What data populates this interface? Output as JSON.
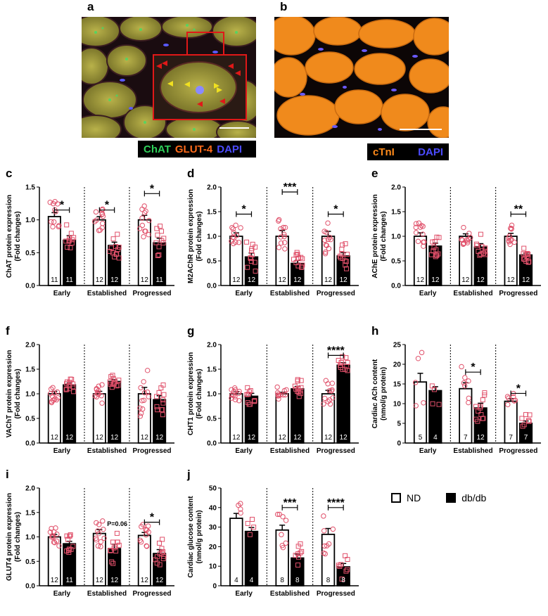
{
  "panels": {
    "a": {
      "label": "a",
      "legend": [
        {
          "text": "ChAT",
          "color": "#2fd05a"
        },
        {
          "text": "GLUT-4",
          "color": "#ff6a1a"
        },
        {
          "text": "DAPI",
          "color": "#4b4bff"
        }
      ]
    },
    "b": {
      "label": "b",
      "legend": [
        {
          "text": "cTnI",
          "color": "#ff8a1a"
        },
        {
          "text": "DAPI",
          "color": "#4b4bff"
        }
      ]
    }
  },
  "key": {
    "nd": "ND",
    "dbdb": "db/db"
  },
  "chart_data": [
    {
      "id": "c",
      "type": "bar",
      "ylabel": "ChAT protein expression\n(Fold changes)",
      "ylim": [
        0,
        1.5
      ],
      "yticks": [
        "0.0",
        "0.5",
        "1.0",
        "1.5"
      ],
      "yticks_v": [
        0,
        0.5,
        1.0,
        1.5
      ],
      "categories": [
        "Early",
        "Established",
        "Progressed"
      ],
      "series": [
        {
          "name": "ND",
          "values": [
            1.05,
            1.0,
            1.0
          ],
          "err": [
            0.06,
            0.05,
            0.07
          ],
          "n": [
            "11",
            "12",
            "12"
          ]
        },
        {
          "name": "db/db",
          "values": [
            0.69,
            0.61,
            0.65
          ],
          "err": [
            0.07,
            0.05,
            0.07
          ],
          "n": [
            "11",
            "12",
            "11"
          ]
        }
      ],
      "sig": [
        {
          "group": 0,
          "text": "*",
          "y": 1.15
        },
        {
          "group": 1,
          "text": "*",
          "y": 1.15
        },
        {
          "group": 2,
          "text": "*",
          "y": 1.4
        }
      ]
    },
    {
      "id": "d",
      "type": "bar",
      "ylabel": "M2AChR protein expression\n(Fold changes)",
      "ylim": [
        0,
        2.0
      ],
      "yticks": [
        "0.0",
        "0.5",
        "1.0",
        "1.5",
        "2.0"
      ],
      "yticks_v": [
        0,
        0.5,
        1.0,
        1.5,
        2.0
      ],
      "categories": [
        "Early",
        "Established",
        "Progressed"
      ],
      "series": [
        {
          "name": "ND",
          "values": [
            1.0,
            1.0,
            1.0
          ],
          "err": [
            0.07,
            0.12,
            0.1
          ],
          "n": [
            "12",
            "12",
            "12"
          ]
        },
        {
          "name": "db/db",
          "values": [
            0.58,
            0.45,
            0.6
          ],
          "err": [
            0.08,
            0.06,
            0.07
          ],
          "n": [
            "12",
            "12",
            "12"
          ]
        }
      ],
      "sig": [
        {
          "group": 0,
          "text": "*",
          "y": 1.45
        },
        {
          "group": 1,
          "text": "***",
          "y": 1.9
        },
        {
          "group": 2,
          "text": "*",
          "y": 1.45
        }
      ]
    },
    {
      "id": "e",
      "type": "bar",
      "ylabel": "AChE protein expression\n(Fold changes)",
      "ylim": [
        0,
        2.0
      ],
      "yticks": [
        "0.0",
        "0.5",
        "1.0",
        "1.5",
        "2.0"
      ],
      "yticks_v": [
        0,
        0.5,
        1.0,
        1.5,
        2.0
      ],
      "categories": [
        "Early",
        "Established",
        "Progressed"
      ],
      "series": [
        {
          "name": "ND",
          "values": [
            1.0,
            1.0,
            1.0
          ],
          "err": [
            0.07,
            0.05,
            0.06
          ],
          "n": [
            "12",
            "12",
            "12"
          ]
        },
        {
          "name": "db/db",
          "values": [
            0.8,
            0.78,
            0.62
          ],
          "err": [
            0.06,
            0.07,
            0.04
          ],
          "n": [
            "12",
            "12",
            "12"
          ]
        }
      ],
      "sig": [
        {
          "group": 2,
          "text": "**",
          "y": 1.45
        }
      ]
    },
    {
      "id": "f",
      "type": "bar",
      "ylabel": "VAChT protein expression\n(Fold changes)",
      "ylim": [
        0,
        2.0
      ],
      "yticks": [
        "0.0",
        "0.5",
        "1.0",
        "1.5",
        "2.0"
      ],
      "yticks_v": [
        0,
        0.5,
        1.0,
        1.5,
        2.0
      ],
      "categories": [
        "Early",
        "Established",
        "Progressed"
      ],
      "series": [
        {
          "name": "ND",
          "values": [
            1.0,
            1.0,
            1.0
          ],
          "err": [
            0.05,
            0.05,
            0.13
          ],
          "n": [
            "12",
            "12",
            "12"
          ]
        },
        {
          "name": "db/db",
          "values": [
            1.18,
            1.25,
            0.88
          ],
          "err": [
            0.04,
            0.04,
            0.08
          ],
          "n": [
            "12",
            "12",
            "12"
          ]
        }
      ],
      "sig": []
    },
    {
      "id": "g",
      "type": "bar",
      "ylabel": "CHT1 protein expression\n(Fold changes)",
      "ylim": [
        0,
        2.0
      ],
      "yticks": [
        "0.0",
        "0.5",
        "1.0",
        "1.5",
        "2.0"
      ],
      "yticks_v": [
        0,
        0.5,
        1.0,
        1.5,
        2.0
      ],
      "categories": [
        "Early",
        "Established",
        "Progressed"
      ],
      "series": [
        {
          "name": "ND",
          "values": [
            1.0,
            1.0,
            1.0
          ],
          "err": [
            0.04,
            0.03,
            0.07
          ],
          "n": [
            "12",
            "12",
            "12"
          ]
        },
        {
          "name": "db/db",
          "values": [
            0.95,
            1.1,
            1.58
          ],
          "err": [
            0.06,
            0.05,
            0.05
          ],
          "n": [
            "12",
            "12",
            "12"
          ]
        }
      ],
      "sig": [
        {
          "group": 2,
          "text": "****",
          "y": 1.78
        }
      ]
    },
    {
      "id": "h",
      "type": "bar",
      "ylabel": "Cardiac ACh content\n(nmol/g protein)",
      "ylim": [
        0,
        25
      ],
      "yticks": [
        "0",
        "5",
        "10",
        "15",
        "20",
        "25"
      ],
      "yticks_v": [
        0,
        5,
        10,
        15,
        20,
        25
      ],
      "categories": [
        "Early",
        "Established",
        "Progressed"
      ],
      "series": [
        {
          "name": "ND",
          "values": [
            15.5,
            13.8,
            10.6
          ],
          "err": [
            2.2,
            1.5,
            0.7
          ],
          "n": [
            "5",
            "7",
            "7"
          ]
        },
        {
          "name": "db/db",
          "values": [
            13.3,
            8.9,
            5.0
          ],
          "err": [
            1.0,
            1.2,
            0.6
          ],
          "n": [
            "4",
            "12",
            "7"
          ]
        }
      ],
      "sig": [
        {
          "group": 1,
          "text": "*",
          "y": 18
        },
        {
          "group": 2,
          "text": "*",
          "y": 12.6
        }
      ]
    },
    {
      "id": "i",
      "type": "bar",
      "ylabel": "GLUT4 protein expression\n(Fold changes)",
      "ylim": [
        0,
        2.0
      ],
      "yticks": [
        "0.0",
        "0.5",
        "1.0",
        "1.5",
        "2.0"
      ],
      "yticks_v": [
        0,
        0.5,
        1.0,
        1.5,
        2.0
      ],
      "categories": [
        "Early",
        "Established",
        "Progressed"
      ],
      "series": [
        {
          "name": "ND",
          "values": [
            1.0,
            1.07,
            1.03
          ],
          "err": [
            0.05,
            0.08,
            0.06
          ],
          "n": [
            "12",
            "12",
            "12"
          ]
        },
        {
          "name": "db/db",
          "values": [
            0.86,
            0.76,
            0.66
          ],
          "err": [
            0.05,
            0.09,
            0.08
          ],
          "n": [
            "11",
            "12",
            "12"
          ]
        }
      ],
      "sig": [
        {
          "group": 2,
          "text": "*",
          "y": 1.3
        }
      ],
      "notes": [
        {
          "group": 1,
          "text": "P=0.06",
          "y": 1.22
        }
      ]
    },
    {
      "id": "j",
      "type": "bar",
      "ylabel": "Cardiac glucose content\n(nmol/g protein)",
      "ylim": [
        0,
        50
      ],
      "yticks": [
        "0",
        "10",
        "20",
        "30",
        "40",
        "50"
      ],
      "yticks_v": [
        0,
        10,
        20,
        30,
        40,
        50
      ],
      "categories": [
        "Early",
        "Established",
        "Progressed"
      ],
      "series": [
        {
          "name": "ND",
          "values": [
            34.5,
            28.5,
            26.3
          ],
          "err": [
            2.5,
            2.5,
            3.0
          ],
          "n": [
            "4",
            "8",
            "8"
          ]
        },
        {
          "name": "db/db",
          "values": [
            27.8,
            14.2,
            9.7
          ],
          "err": [
            2.0,
            2.0,
            1.7
          ],
          "n": [
            "4",
            "8",
            "8"
          ]
        }
      ],
      "sig": [
        {
          "group": 1,
          "text": "***",
          "y": 40
        },
        {
          "group": 2,
          "text": "****",
          "y": 40
        }
      ]
    }
  ]
}
